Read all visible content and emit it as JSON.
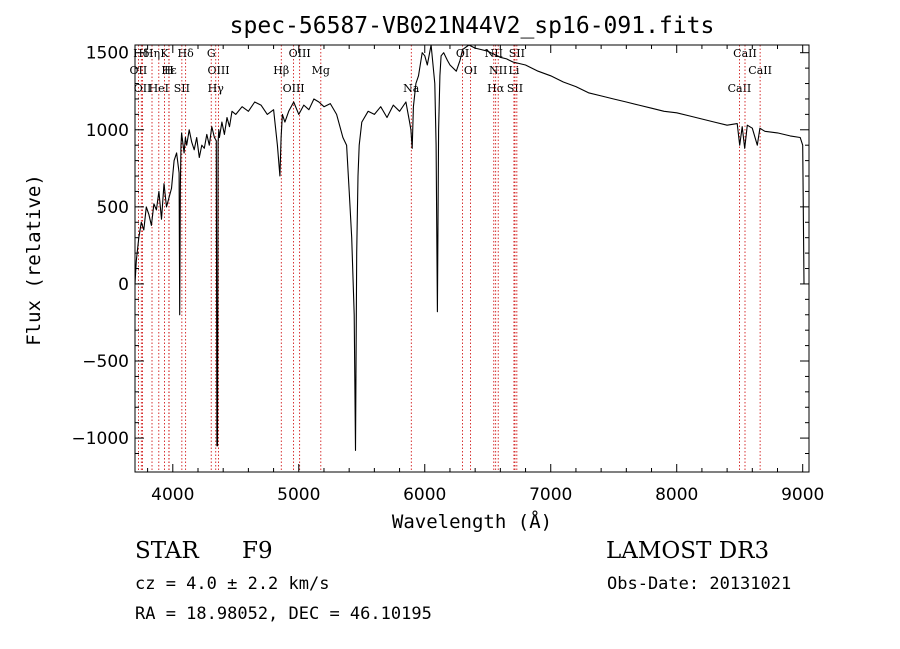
{
  "chart_data": {
    "type": "line",
    "title": "spec-56587-VB021N44V2_sp16-091.fits",
    "xlabel": "Wavelength (Å)",
    "ylabel": "Flux (relative)",
    "xlim": [
      3700,
      9050
    ],
    "ylim": [
      -1220,
      1550
    ],
    "xticks": [
      4000,
      5000,
      6000,
      7000,
      8000,
      9000
    ],
    "yticks": [
      -1000,
      -500,
      0,
      500,
      1000,
      1500
    ],
    "series": [
      {
        "name": "flux",
        "x": [
          3700,
          3710,
          3730,
          3750,
          3770,
          3790,
          3810,
          3830,
          3850,
          3870,
          3890,
          3910,
          3930,
          3950,
          3970,
          3990,
          4010,
          4030,
          4050,
          4055,
          4060,
          4065,
          4070,
          4090,
          4100,
          4110,
          4130,
          4150,
          4170,
          4190,
          4210,
          4230,
          4250,
          4270,
          4290,
          4310,
          4330,
          4345,
          4350,
          4355,
          4360,
          4365,
          4370,
          4390,
          4410,
          4430,
          4450,
          4470,
          4500,
          4550,
          4600,
          4650,
          4700,
          4750,
          4800,
          4830,
          4850,
          4860,
          4870,
          4890,
          4920,
          4960,
          5000,
          5040,
          5080,
          5120,
          5160,
          5200,
          5250,
          5300,
          5350,
          5380,
          5400,
          5420,
          5440,
          5450,
          5460,
          5470,
          5480,
          5500,
          5550,
          5600,
          5650,
          5700,
          5750,
          5800,
          5850,
          5880,
          5890,
          5900,
          5910,
          5930,
          5950,
          5980,
          6000,
          6020,
          6050,
          6080,
          6090,
          6100,
          6110,
          6120,
          6130,
          6150,
          6180,
          6200,
          6250,
          6280,
          6300,
          6350,
          6400,
          6450,
          6500,
          6550,
          6600,
          6650,
          6700,
          6750,
          6800,
          6900,
          7000,
          7100,
          7200,
          7300,
          7400,
          7500,
          7600,
          7700,
          7800,
          7900,
          8000,
          8100,
          8200,
          8300,
          8400,
          8480,
          8500,
          8520,
          8540,
          8560,
          8600,
          8640,
          8660,
          8680,
          8700,
          8800,
          8900,
          8980,
          9000,
          9010
        ],
        "y": [
          0,
          150,
          300,
          400,
          350,
          500,
          450,
          380,
          520,
          480,
          600,
          420,
          650,
          500,
          560,
          620,
          800,
          850,
          720,
          -200,
          650,
          900,
          980,
          850,
          950,
          900,
          1000,
          920,
          870,
          950,
          820,
          900,
          880,
          970,
          900,
          1020,
          950,
          930,
          -1050,
          -1050,
          920,
          1000,
          950,
          1050,
          970,
          1080,
          1020,
          1120,
          1100,
          1150,
          1120,
          1180,
          1160,
          1100,
          1130,
          900,
          700,
          950,
          1100,
          1050,
          1120,
          1180,
          1100,
          1160,
          1130,
          1200,
          1180,
          1150,
          1170,
          1100,
          950,
          900,
          600,
          300,
          -200,
          -1080,
          200,
          700,
          900,
          1050,
          1120,
          1100,
          1150,
          1080,
          1160,
          1120,
          1180,
          1050,
          1000,
          880,
          1150,
          1300,
          1350,
          1500,
          1480,
          1420,
          1550,
          1300,
          900,
          -180,
          1000,
          1350,
          1480,
          1500,
          1450,
          1420,
          1380,
          1450,
          1520,
          1550,
          1530,
          1520,
          1510,
          1490,
          1470,
          1460,
          1440,
          1430,
          1420,
          1380,
          1350,
          1310,
          1280,
          1240,
          1220,
          1200,
          1180,
          1160,
          1140,
          1120,
          1110,
          1090,
          1070,
          1050,
          1030,
          1040,
          900,
          1020,
          880,
          1030,
          1010,
          900,
          1010,
          1000,
          990,
          980,
          960,
          950,
          900,
          0
        ]
      }
    ],
    "lines": [
      {
        "label": "Hδ",
        "x": 3750
      },
      {
        "label": "OII",
        "x": 3727
      },
      {
        "label": "OII",
        "x": 3760
      },
      {
        "label": "K",
        "x": 3934
      },
      {
        "label": "H",
        "x": 3969
      },
      {
        "label": "HeI",
        "x": 3889
      },
      {
        "label": "Hη",
        "x": 3835
      },
      {
        "label": "Hε",
        "x": 3970
      },
      {
        "label": "SII",
        "x": 4072
      },
      {
        "label": "Hδ",
        "x": 4102
      },
      {
        "label": "OIII",
        "x": 4363
      },
      {
        "label": "Hγ",
        "x": 4341
      },
      {
        "label": "G",
        "x": 4305
      },
      {
        "label": "Hβ",
        "x": 4861
      },
      {
        "label": "OIII",
        "x": 4959
      },
      {
        "label": "OIII",
        "x": 5007
      },
      {
        "label": "Mg",
        "x": 5175
      },
      {
        "label": "Na",
        "x": 5893
      },
      {
        "label": "OI",
        "x": 6300
      },
      {
        "label": "OI",
        "x": 6364
      },
      {
        "label": "Hα",
        "x": 6563
      },
      {
        "label": "NII",
        "x": 6548
      },
      {
        "label": "NII",
        "x": 6583
      },
      {
        "label": "SII",
        "x": 6716
      },
      {
        "label": "SII",
        "x": 6731
      },
      {
        "label": "Li",
        "x": 6708
      },
      {
        "label": "CaII",
        "x": 8498
      },
      {
        "label": "CaII",
        "x": 8542
      },
      {
        "label": "CaII",
        "x": 8662
      }
    ]
  },
  "info": {
    "class": "STAR",
    "subclass": "F9",
    "survey": "LAMOST DR3",
    "cz": "cz = 4.0 ± 2.2 km/s",
    "obs_date": "Obs-Date: 20131021",
    "coords": "RA =  18.98052, DEC =  46.10195"
  },
  "colors": {
    "axes": "#000000",
    "line": "#000000",
    "marker": "#cc0000"
  }
}
